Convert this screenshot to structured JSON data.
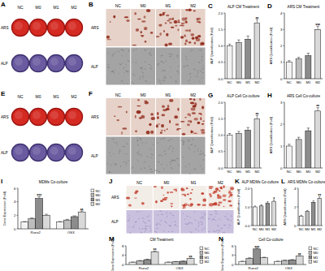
{
  "image_panels": [
    {
      "label": "A",
      "columns": [
        "NC",
        "M0",
        "M1",
        "M2"
      ],
      "rows": [
        "ARS",
        "ALP"
      ]
    },
    {
      "label": "B",
      "columns": [
        "NC",
        "M0",
        "M1",
        "M2"
      ],
      "rows": [
        "ARS",
        "ALP"
      ]
    },
    {
      "label": "E",
      "columns": [
        "NC",
        "M0",
        "M1",
        "M2"
      ],
      "rows": [
        "ARS",
        "ALP"
      ]
    },
    {
      "label": "F",
      "columns": [
        "NC",
        "M0",
        "M1",
        "M2"
      ],
      "rows": [
        "ARS",
        "ALP"
      ]
    },
    {
      "label": "J",
      "columns": [
        "NC",
        "M0",
        "M1",
        "M2"
      ],
      "rows": [
        "ARS",
        "ALP"
      ]
    }
  ],
  "chart_data": [
    {
      "panel": "C",
      "type": "bar",
      "title": "ALP CM Treatment",
      "y_label": "ALP Quantification (Fold)",
      "categories": [
        "NC",
        "M0",
        "M1",
        "M2"
      ],
      "values": [
        1.0,
        1.1,
        1.2,
        1.7
      ],
      "errors": [
        0.05,
        0.08,
        0.1,
        0.1
      ],
      "colors": [
        "#f2f2f2",
        "#bdbdbd",
        "#8c8c8c",
        "#d9d9d9"
      ],
      "ylim": [
        0,
        2
      ],
      "yticks": [
        {
          "value": 0,
          "label": "0.0"
        },
        {
          "value": 0.5,
          "label": "0.5"
        },
        {
          "value": 1,
          "label": "1.0"
        },
        {
          "value": 1.5,
          "label": "1.5"
        },
        {
          "value": 2,
          "label": "2.0"
        }
      ],
      "annotations": [
        {
          "text": "**",
          "index": 3
        }
      ]
    },
    {
      "panel": "D",
      "type": "bar",
      "title": "ARS CM Treatment",
      "y_label": "ARS Quantification (Fold)",
      "categories": [
        "NC",
        "M0",
        "M1",
        "M2"
      ],
      "values": [
        1.0,
        1.2,
        1.4,
        3.0
      ],
      "errors": [
        0.1,
        0.1,
        0.15,
        0.2
      ],
      "colors": [
        "#f2f2f2",
        "#bdbdbd",
        "#8c8c8c",
        "#d9d9d9"
      ],
      "ylim": [
        0,
        4
      ],
      "yticks": [
        0,
        1,
        2,
        3,
        4
      ],
      "annotations": [
        {
          "text": "***",
          "index": 3
        }
      ]
    },
    {
      "panel": "G",
      "type": "bar",
      "title": "ALP Cell Co-culture",
      "y_label": "ALP Quantification (Fold)",
      "categories": [
        "NC",
        "M0",
        "M1",
        "M2"
      ],
      "values": [
        1.0,
        1.05,
        1.15,
        1.5
      ],
      "errors": [
        0.05,
        0.06,
        0.08,
        0.1
      ],
      "colors": [
        "#f2f2f2",
        "#bdbdbd",
        "#8c8c8c",
        "#d9d9d9"
      ],
      "ylim": [
        0,
        2
      ],
      "yticks": [
        {
          "value": 0,
          "label": "0.0"
        },
        {
          "value": 0.5,
          "label": "0.5"
        },
        {
          "value": 1,
          "label": "1.0"
        },
        {
          "value": 1.5,
          "label": "1.5"
        },
        {
          "value": 2,
          "label": "2.0"
        }
      ],
      "annotations": [
        {
          "text": "**",
          "index": 3
        }
      ]
    },
    {
      "panel": "H",
      "type": "bar",
      "title": "ARS Cell Co-culture",
      "y_label": "ARS Quantification (Fold)",
      "categories": [
        "NC",
        "M0",
        "M1",
        "M2"
      ],
      "values": [
        1.0,
        1.3,
        1.7,
        2.6
      ],
      "errors": [
        0.08,
        0.1,
        0.12,
        0.15
      ],
      "colors": [
        "#f2f2f2",
        "#bdbdbd",
        "#8c8c8c",
        "#d9d9d9"
      ],
      "ylim": [
        0,
        3
      ],
      "yticks": [
        0,
        1,
        2,
        3
      ],
      "annotations": [
        {
          "text": "**",
          "index": 3
        }
      ]
    },
    {
      "panel": "I",
      "type": "bar",
      "title": "MDMs Co-culture",
      "y_label": "Gene Expression (Fold)",
      "categories": [
        "Runx2",
        "OSX"
      ],
      "legend": "right",
      "ylim": [
        0,
        6
      ],
      "yticks": [
        0,
        2,
        4,
        6
      ],
      "series": [
        {
          "name": "NC",
          "color": "#f2f2f2",
          "values": [
            1.0,
            1.0
          ],
          "errors": [
            0.08,
            0.08
          ]
        },
        {
          "name": "M0",
          "color": "#bdbdbd",
          "values": [
            1.5,
            1.3
          ],
          "errors": [
            0.1,
            0.1
          ]
        },
        {
          "name": "M1",
          "color": "#8c8c8c",
          "values": [
            4.5,
            1.8
          ],
          "errors": [
            0.25,
            0.12
          ]
        },
        {
          "name": "M2",
          "color": "#d9d9d9",
          "values": [
            2.0,
            2.5
          ],
          "errors": [
            0.15,
            0.15
          ]
        }
      ],
      "annotations": [
        {
          "text": "***",
          "series": 2,
          "index": 0
        },
        {
          "text": "**",
          "series": 3,
          "index": 1
        }
      ]
    },
    {
      "panel": "K",
      "type": "bar",
      "title": "ALP MDMs Co-culture",
      "y_label": "ALP Quantification (Fold)",
      "categories": [
        "NC",
        "M0",
        "M1",
        "M2"
      ],
      "values": [
        1.0,
        1.05,
        1.2,
        1.3
      ],
      "errors": [
        0.05,
        0.06,
        0.08,
        0.08
      ],
      "colors": [
        "#f2f2f2",
        "#bdbdbd",
        "#8c8c8c",
        "#d9d9d9"
      ],
      "ylim": [
        0,
        2
      ],
      "yticks": [
        {
          "value": 0,
          "label": "0.0"
        },
        {
          "value": 1,
          "label": "1.0"
        },
        {
          "value": 2,
          "label": "2.0"
        }
      ],
      "annotations": [
        {
          "text": "*",
          "index": 3
        }
      ]
    },
    {
      "panel": "L",
      "type": "bar",
      "title": "ARS MDMs Co-culture",
      "y_label": "ARS Quantification (Fold)",
      "categories": [
        "NC",
        "M0",
        "M1",
        "M2"
      ],
      "values": [
        1.0,
        1.5,
        2.5,
        2.9
      ],
      "errors": [
        0.1,
        0.12,
        0.15,
        0.18
      ],
      "colors": [
        "#f2f2f2",
        "#bdbdbd",
        "#8c8c8c",
        "#d9d9d9"
      ],
      "ylim": [
        0,
        4
      ],
      "yticks": [
        0,
        2,
        4
      ],
      "annotations": [
        {
          "text": "**",
          "index": 3
        }
      ]
    },
    {
      "panel": "M",
      "type": "bar",
      "title": "CM Treatment",
      "y_label": "Gene Expression (Fold)",
      "categories": [
        "Runx2",
        "OSX"
      ],
      "legend": "right",
      "ylim": [
        0,
        8
      ],
      "yticks": [
        0,
        4,
        8
      ],
      "series": [
        {
          "name": "NC",
          "color": "#f2f2f2",
          "values": [
            1.0,
            1.0
          ],
          "errors": [
            0.08,
            0.08
          ]
        },
        {
          "name": "M0",
          "color": "#bdbdbd",
          "values": [
            1.6,
            1.2
          ],
          "errors": [
            0.12,
            0.1
          ]
        },
        {
          "name": "M1",
          "color": "#8c8c8c",
          "values": [
            2.1,
            1.4
          ],
          "errors": [
            0.15,
            0.1
          ]
        },
        {
          "name": "M2",
          "color": "#d9d9d9",
          "values": [
            5.5,
            2.6
          ],
          "errors": [
            0.3,
            0.15
          ]
        }
      ],
      "annotations": [
        {
          "text": "**",
          "series": 3,
          "index": 0
        },
        {
          "text": "**",
          "series": 3,
          "index": 1
        }
      ]
    },
    {
      "panel": "N",
      "type": "bar",
      "title": "Cell Co-culture",
      "y_label": "Gene Expression (Fold)",
      "categories": [
        "Runx2",
        "OSX"
      ],
      "legend": "right",
      "ylim": [
        0,
        6
      ],
      "yticks": [
        0,
        3,
        6
      ],
      "series": [
        {
          "name": "NC",
          "color": "#f2f2f2",
          "values": [
            1.0,
            1.0
          ],
          "errors": [
            0.08,
            0.08
          ]
        },
        {
          "name": "M0",
          "color": "#bdbdbd",
          "values": [
            2.0,
            1.3
          ],
          "errors": [
            0.15,
            0.1
          ]
        },
        {
          "name": "M1",
          "color": "#8c8c8c",
          "values": [
            5.0,
            1.5
          ],
          "errors": [
            0.25,
            0.1
          ]
        },
        {
          "name": "M2",
          "color": "#d9d9d9",
          "values": [
            2.2,
            2.7
          ],
          "errors": [
            0.15,
            0.15
          ]
        }
      ],
      "annotations": [
        {
          "text": "***",
          "series": 2,
          "index": 0
        },
        {
          "text": "**",
          "series": 3,
          "index": 1
        }
      ]
    }
  ]
}
